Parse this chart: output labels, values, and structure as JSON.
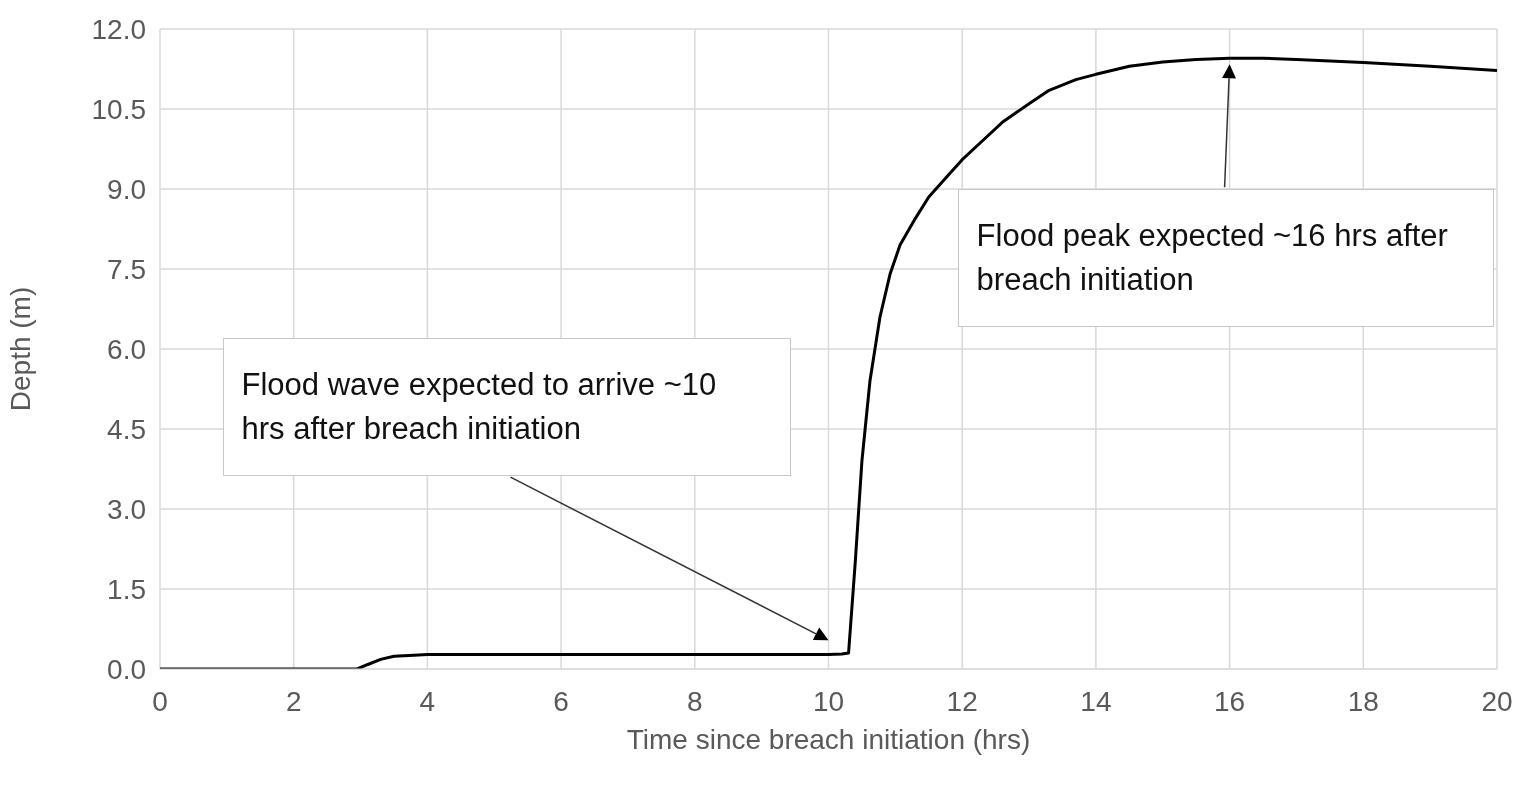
{
  "chart_data": {
    "type": "line",
    "xlabel": "Time since breach initiation (hrs)",
    "ylabel": "Depth (m)",
    "x": [
      0,
      1,
      2,
      2.95,
      3.1,
      3.3,
      3.5,
      3.8,
      4,
      6,
      8,
      10,
      10.2,
      10.3,
      10.4,
      10.5,
      10.62,
      10.77,
      10.92,
      11.07,
      11.3,
      11.5,
      11.75,
      12,
      12.3,
      12.6,
      13,
      13.3,
      13.7,
      14,
      14.5,
      15,
      15.5,
      16,
      16.5,
      17,
      18,
      19,
      20
    ],
    "series": [
      {
        "color": "#000000",
        "values": [
          0,
          0,
          0,
          0,
          0.08,
          0.18,
          0.24,
          0.26,
          0.27,
          0.27,
          0.27,
          0.27,
          0.28,
          0.3,
          2.0,
          3.9,
          5.4,
          6.6,
          7.4,
          7.95,
          8.45,
          8.85,
          9.2,
          9.55,
          9.9,
          10.25,
          10.6,
          10.85,
          11.05,
          11.15,
          11.3,
          11.38,
          11.43,
          11.45,
          11.45,
          11.43,
          11.37,
          11.3,
          11.22
        ]
      }
    ],
    "xlim": [
      0,
      20
    ],
    "xticks": [
      0,
      2,
      4,
      6,
      8,
      10,
      12,
      14,
      16,
      18,
      20
    ],
    "ylim": [
      0,
      12
    ],
    "yticks": [
      {
        "value": 0,
        "label": "0.0"
      },
      {
        "value": 1.5,
        "label": "1.5"
      },
      {
        "value": 3,
        "label": "3.0"
      },
      {
        "value": 4.5,
        "label": "4.5"
      },
      {
        "value": 6,
        "label": "6.0"
      },
      {
        "value": 7.5,
        "label": "7.5"
      },
      {
        "value": 9,
        "label": "9.0"
      },
      {
        "value": 10.5,
        "label": "10.5"
      },
      {
        "value": 12,
        "label": "12.0"
      }
    ],
    "grid": true,
    "marker": "none",
    "line_style": "solid",
    "annotations": [
      "Flood wave expected to arrive ~10 hrs after breach initiation",
      "Flood peak expected ~16 hrs after breach initiation"
    ]
  }
}
